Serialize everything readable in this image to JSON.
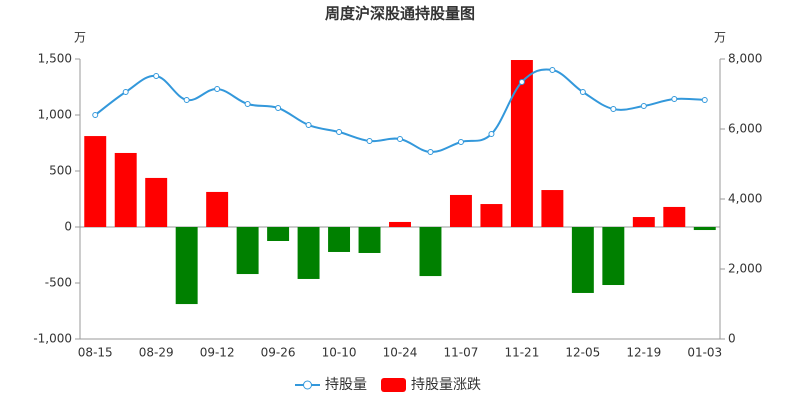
{
  "chart_data": {
    "type": "bar-line",
    "title": "周度沪深股通持股量图",
    "y_unit": "万",
    "y2_unit": "万",
    "categories": [
      "08-15",
      null,
      "08-29",
      null,
      "09-12",
      null,
      "09-26",
      null,
      "10-10",
      null,
      "10-24",
      null,
      "11-07",
      null,
      "11-21",
      null,
      "12-05",
      null,
      "12-19",
      null,
      "01-03"
    ],
    "series": [
      {
        "name": "持股量",
        "type": "line",
        "axis": "y2",
        "color": "#3398db",
        "values": [
          6400,
          7057,
          7514,
          6829,
          7143,
          6714,
          6600,
          6114,
          5914,
          5657,
          5714,
          5343,
          5629,
          5857,
          7343,
          7686,
          7057,
          6571,
          6657,
          6857,
          6829
        ]
      },
      {
        "name": "持股量涨跌",
        "type": "bar",
        "axis": "y",
        "color": "#ff0000",
        "negative_color": "#008000",
        "values": [
          812,
          661,
          438,
          -688,
          313,
          -420,
          -125,
          -464,
          -223,
          -232,
          45,
          -438,
          286,
          205,
          1491,
          330,
          -589,
          -518,
          89,
          179,
          -27
        ]
      }
    ],
    "ylim": [
      -1000,
      1500
    ],
    "yticks": [
      {
        "value": -1000,
        "label": "-1,000"
      },
      -500,
      0,
      500,
      {
        "value": 1000,
        "label": "1,000"
      },
      {
        "value": 1500,
        "label": "1,500"
      }
    ],
    "y2lim": [
      0,
      8000
    ],
    "y2ticks": [
      0,
      {
        "value": 2000,
        "label": "2,000"
      },
      {
        "value": 4000,
        "label": "4,000"
      },
      {
        "value": 6000,
        "label": "6,000"
      },
      {
        "value": 8000,
        "label": "8,000"
      }
    ],
    "legend": "bottom"
  }
}
